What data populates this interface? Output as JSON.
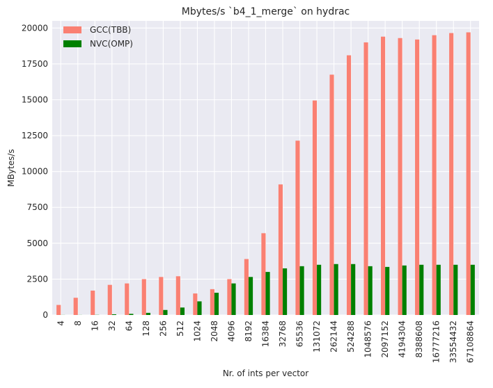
{
  "chart_data": {
    "type": "bar",
    "title": "Mbytes/s `b4_1_merge` on hydrac",
    "xlabel": "Nr. of ints per vector",
    "ylabel": "MBytes/s",
    "ylim": [
      0,
      20500
    ],
    "yticks": [
      0,
      2500,
      5000,
      7500,
      10000,
      12500,
      15000,
      17500,
      20000
    ],
    "grid": true,
    "legend_position": "top-left",
    "categories": [
      "4",
      "8",
      "16",
      "32",
      "64",
      "128",
      "256",
      "512",
      "1024",
      "2048",
      "4096",
      "8192",
      "16384",
      "32768",
      "65536",
      "131072",
      "262144",
      "524288",
      "1048576",
      "2097152",
      "4194304",
      "8388608",
      "16777216",
      "33554432",
      "67108864"
    ],
    "series": [
      {
        "name": "GCC(TBB)",
        "color": "#fa8072",
        "values": [
          700,
          1200,
          1700,
          2100,
          2200,
          2500,
          2650,
          2700,
          1500,
          1800,
          2500,
          3900,
          5700,
          9100,
          12150,
          14950,
          16750,
          18100,
          19000,
          19400,
          19300,
          19200,
          19500,
          19650,
          19700
        ]
      },
      {
        "name": "NVC(OMP)",
        "color": "#008000",
        "values": [
          5,
          5,
          10,
          50,
          80,
          150,
          350,
          520,
          950,
          1550,
          2200,
          2650,
          3000,
          3250,
          3400,
          3500,
          3550,
          3550,
          3400,
          3350,
          3450,
          3500,
          3500,
          3500,
          3500
        ]
      }
    ]
  }
}
